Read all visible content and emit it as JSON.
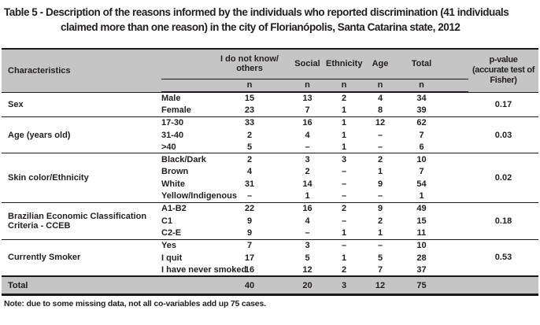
{
  "title": {
    "line1": "Table 5 - Description of the reasons informed by the individuals who reported discrimination (41 individuals",
    "line2": "claimed more than one reason) in the city of Florianópolis, Santa Catarina state, 2012"
  },
  "table": {
    "header": {
      "characteristics": "Characteristics",
      "groups": [
        "I do not know/\nothers",
        "Social",
        "Ethnicity",
        "Age",
        "Total"
      ],
      "sub": "n",
      "pvalue": "p-value\n(accurate test of\nFisher)"
    },
    "groups": [
      {
        "characteristic": "Sex",
        "p_value": "0.17",
        "rows": [
          {
            "label": "Male",
            "values": [
              "15",
              "13",
              "2",
              "4",
              "34"
            ]
          },
          {
            "label": "Female",
            "values": [
              "23",
              "7",
              "1",
              "8",
              "39"
            ]
          }
        ]
      },
      {
        "characteristic": "Age (years old)",
        "p_value": "0.03",
        "rows": [
          {
            "label": "17-30",
            "values": [
              "33",
              "16",
              "1",
              "12",
              "62"
            ]
          },
          {
            "label": "31-40",
            "values": [
              "2",
              "4",
              "1",
              "–",
              "7"
            ]
          },
          {
            "label": ">40",
            "values": [
              "5",
              "–",
              "1",
              "–",
              "6"
            ]
          }
        ]
      },
      {
        "characteristic": "Skin color/Ethnicity",
        "p_value": "0.02",
        "rows": [
          {
            "label": "Black/Dark",
            "values": [
              "2",
              "3",
              "3",
              "2",
              "10"
            ]
          },
          {
            "label": "Brown",
            "values": [
              "4",
              "2",
              "–",
              "1",
              "7"
            ]
          },
          {
            "label": "White",
            "values": [
              "31",
              "14",
              "–",
              "9",
              "54"
            ]
          },
          {
            "label": "Yellow/Indigenous",
            "values": [
              "–",
              "1",
              "–",
              "–",
              "1"
            ]
          }
        ]
      },
      {
        "characteristic": "Brazilian Economic Classification Criteria - CCEB",
        "p_value": "0.18",
        "rows": [
          {
            "label": "A1-B2",
            "values": [
              "22",
              "16",
              "2",
              "9",
              "49"
            ]
          },
          {
            "label": "C1",
            "values": [
              "9",
              "4",
              "–",
              "2",
              "15"
            ]
          },
          {
            "label": "C2-E",
            "values": [
              "9",
              "–",
              "1",
              "1",
              "11"
            ]
          }
        ]
      },
      {
        "characteristic": "Currently Smoker",
        "p_value": "0.53",
        "rows": [
          {
            "label": "Yes",
            "values": [
              "7",
              "3",
              "–",
              "–",
              "10"
            ]
          },
          {
            "label": "I quit",
            "values": [
              "17",
              "5",
              "1",
              "5",
              "28"
            ]
          },
          {
            "label": "I have never smoked",
            "values": [
              "16",
              "12",
              "2",
              "7",
              "37"
            ]
          }
        ]
      }
    ],
    "total": {
      "label": "Total",
      "values": [
        "40",
        "20",
        "3",
        "12",
        "75"
      ],
      "p_value": ""
    }
  },
  "note": "Note: due to some missing data, not all co-variables add up 75 cases.",
  "colors": {
    "header_bg": "#c5c5c5",
    "text": "#221e20",
    "border": "#1b181c",
    "page_bg": "#ffffff"
  }
}
